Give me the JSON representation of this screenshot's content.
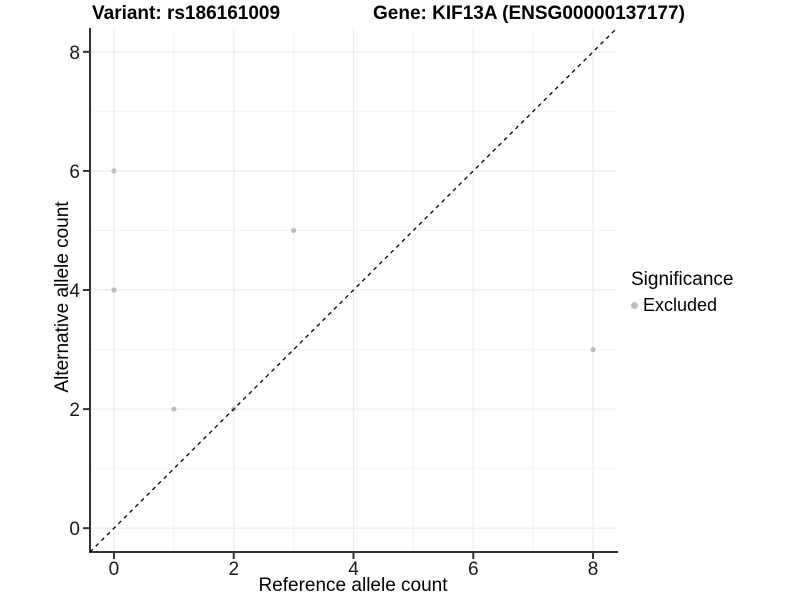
{
  "title": {
    "variant": "Variant: rs186161009",
    "gene": "Gene: KIF13A (ENSG00000137177)"
  },
  "axes": {
    "x": {
      "label": "Reference allele count",
      "tick_labels": [
        "0",
        "2",
        "4",
        "6",
        "8"
      ]
    },
    "y": {
      "label": "Alternative allele count",
      "tick_labels": [
        "0",
        "2",
        "4",
        "6",
        "8"
      ]
    }
  },
  "legend": {
    "title": "Significance",
    "items": [
      {
        "label": "Excluded",
        "marker": "dot",
        "color": "#bdbdbd"
      }
    ]
  },
  "colors": {
    "point": "#bdbdbd",
    "grid_major": "#ebebeb",
    "grid_minor": "#f4f4f4",
    "axis_line": "#333333",
    "tick_text": "#1a1a1a",
    "reference_line": "#000000"
  },
  "chart_data": {
    "type": "scatter",
    "title": "Variant: rs186161009    Gene: KIF13A (ENSG00000137177)",
    "xlabel": "Reference allele count",
    "ylabel": "Alternative allele count",
    "xlim": [
      -0.4,
      8.4
    ],
    "ylim": [
      -0.4,
      8.4
    ],
    "x_ticks": [
      0,
      2,
      4,
      6,
      8
    ],
    "y_ticks": [
      0,
      2,
      4,
      6,
      8
    ],
    "x_minor_ticks": [
      1,
      3,
      5,
      7
    ],
    "y_minor_ticks": [
      1,
      3,
      5,
      7
    ],
    "grid": "on",
    "legend_position": "right",
    "series": [
      {
        "name": "Excluded",
        "color": "#bdbdbd",
        "points": [
          [
            0,
            4
          ],
          [
            0,
            6
          ],
          [
            1,
            2
          ],
          [
            2,
            2
          ],
          [
            3,
            5
          ],
          [
            8,
            3
          ]
        ]
      }
    ],
    "reference_line": {
      "type": "y=x",
      "style": "dashed",
      "color": "#000000"
    }
  }
}
